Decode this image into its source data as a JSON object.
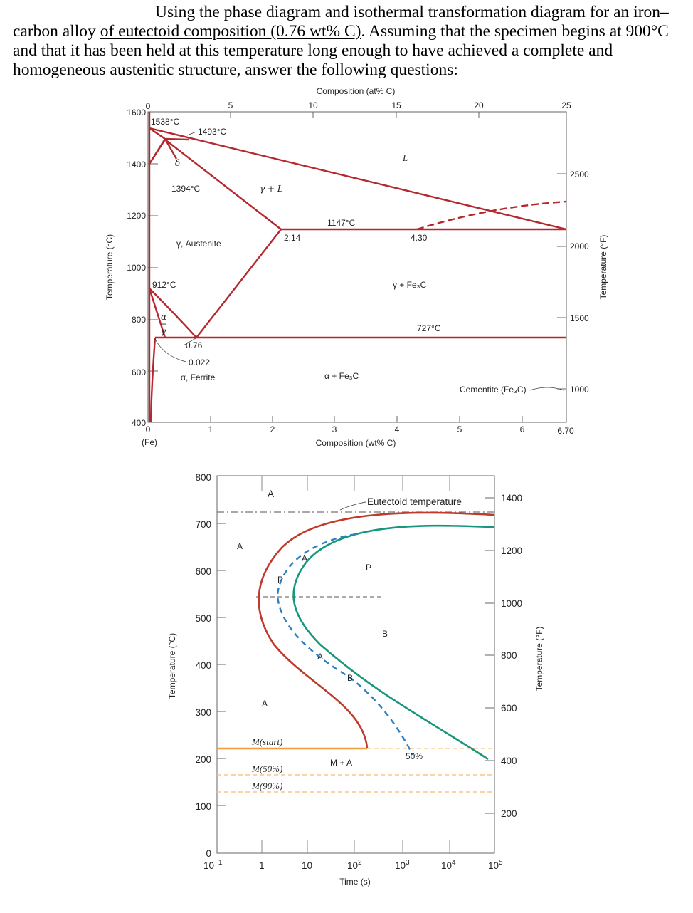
{
  "question": {
    "part1": "Using the phase diagram and isothermal transformation diagram for an iron–carbon alloy ",
    "underlined": "of eutectoid composition (0.76 wt% C)",
    "part2": ". Assuming that the specimen begins at 900°C and that it has been held at this temperature long enough to have achieved a complete and homogeneous austenitic structure, answer the following questions:"
  },
  "colors": {
    "phase_lines": "#b5282e",
    "ttt_start": "#c0392b",
    "ttt_finish": "#16967a",
    "ttt_50pct": "#2d7fc1",
    "martensite": "#f39c3a"
  },
  "phase_diagram": {
    "top_axis_title": "Composition (at% C)",
    "top_ticks": [
      "5",
      "10",
      "15",
      "20",
      "25"
    ],
    "bottom_axis_title": "Composition (wt% C)",
    "bottom_ticks": [
      "0",
      "1",
      "2",
      "3",
      "4",
      "5",
      "6",
      "6.70"
    ],
    "origin_label": "(Fe)",
    "top_origin": "0",
    "left_axis_title": "Temperature (°C)",
    "left_ticks": [
      "1600",
      "1400",
      "1200",
      "1000",
      "800",
      "600",
      "400"
    ],
    "right_axis_title": "Temperature (°F)",
    "right_ticks": [
      "2500",
      "2000",
      "1500",
      "1000"
    ],
    "annotations": {
      "t1538": "1538°C",
      "t1493": "1493°C",
      "delta": "δ",
      "t1394": "1394°C",
      "gamma_l": "γ + L",
      "liquid": "L",
      "t1147": "1147°C",
      "c214": "2.14",
      "c430": "4.30",
      "austenite": "γ, Austenite",
      "gamma_fe3c": "γ + Fe₃C",
      "t912": "912°C",
      "alpha_gamma_a": "α",
      "alpha_gamma_plus": "+",
      "alpha_gamma_g": "γ",
      "t727": "727°C",
      "c076": "0.76",
      "c0022": "0.022",
      "ferrite": "α, Ferrite",
      "alpha_fe3c": "α + Fe₃C",
      "cementite": "Cementite (Fe₃C)"
    }
  },
  "ttt_diagram": {
    "left_axis_title": "Temperature (°C)",
    "left_ticks": [
      "800",
      "700",
      "600",
      "500",
      "400",
      "300",
      "200",
      "100",
      "0"
    ],
    "right_axis_title": "Temperature (°F)",
    "right_ticks": [
      "1400",
      "1200",
      "1000",
      "800",
      "600",
      "400",
      "200"
    ],
    "x_axis_title": "Time (s)",
    "x_ticks_base": [
      "10",
      "1",
      "10",
      "10",
      "10",
      "10",
      "10"
    ],
    "x_ticks_exp": [
      "−1",
      "",
      "",
      "2",
      "3",
      "4",
      "5"
    ],
    "labels": {
      "eutectoid": "Eutectoid temperature",
      "a_top": "A",
      "a_left": "A",
      "a_low": "A",
      "p_small": "P",
      "p_large": "P",
      "a_small_top": "A",
      "a_small_mid": "A",
      "b_small": "B",
      "b_large": "B",
      "mstart": "M(start)",
      "m50": "M(50%)",
      "m90": "M(90%)",
      "ma": "M + A",
      "pct50": "50%"
    }
  }
}
